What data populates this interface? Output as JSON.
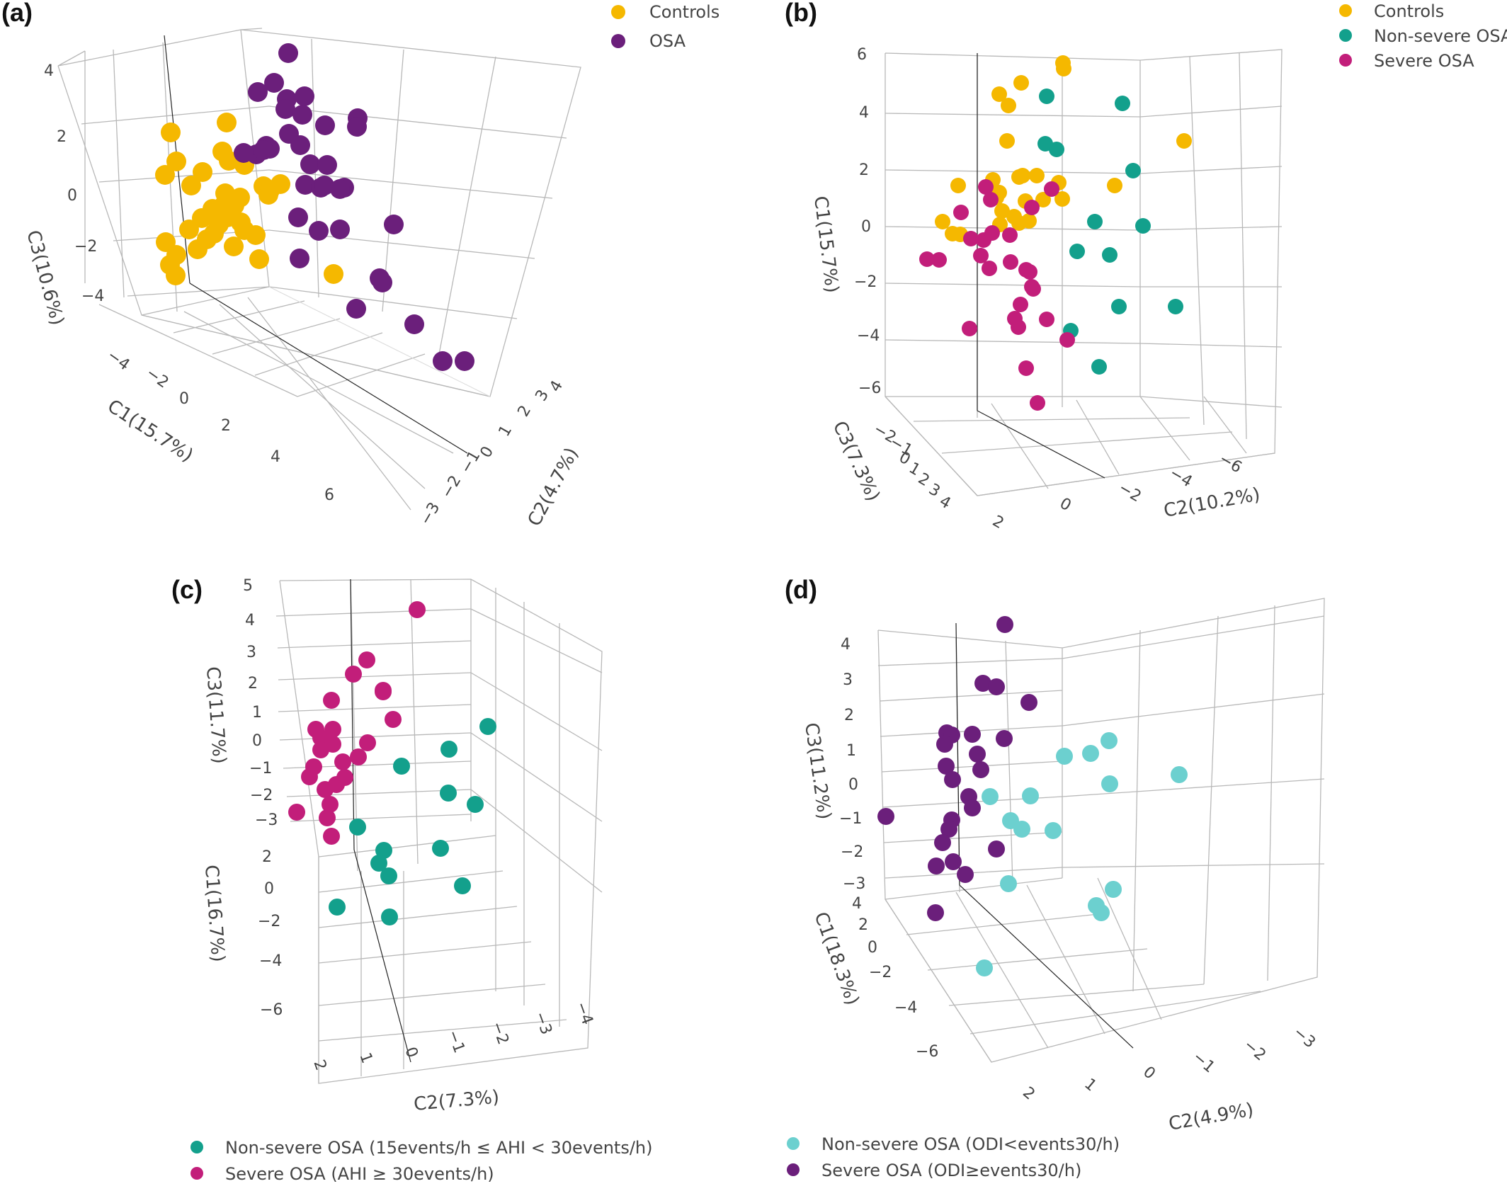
{
  "figure": {
    "panels": [
      {
        "letter": "(a)"
      },
      {
        "letter": "(b)"
      },
      {
        "letter": "(c)"
      },
      {
        "letter": "(d)"
      }
    ]
  },
  "chart_data": [
    {
      "type": "scatter",
      "panel": "(a)",
      "axes": {
        "C1": "C1(15.7%)",
        "C2": "C2(4.7%)",
        "C3": "C3(10.6%)"
      },
      "ticks": {
        "C1": [
          "−4",
          "−2",
          "0",
          "2",
          "4",
          "6"
        ],
        "C2": [
          "−3",
          "−2",
          "−1",
          "0",
          "1",
          "2",
          "3",
          "4"
        ],
        "C3": [
          "4",
          "2",
          "0",
          "−2",
          "−4"
        ]
      },
      "legend_position": "top-center",
      "grid": true,
      "series": [
        {
          "name": "Controls",
          "color": "#F5B800",
          "points": [
            [
              320,
              173
            ],
            [
              241,
              187
            ],
            [
              314,
              214
            ],
            [
              249,
              228
            ],
            [
              233,
              247
            ],
            [
              286,
              243
            ],
            [
              270,
              262
            ],
            [
              323,
              227
            ],
            [
              345,
              233
            ],
            [
              372,
              263
            ],
            [
              381,
              269
            ],
            [
              339,
              279
            ],
            [
              316,
              290
            ],
            [
              300,
              295
            ],
            [
              309,
              301
            ],
            [
              321,
              307
            ],
            [
              331,
              290
            ],
            [
              309,
              317
            ],
            [
              345,
              325
            ],
            [
              302,
              330
            ],
            [
              292,
              338
            ],
            [
              267,
              324
            ],
            [
              330,
              348
            ],
            [
              361,
              332
            ],
            [
              379,
              275
            ],
            [
              234,
              342
            ],
            [
              249,
              360
            ],
            [
              279,
              352
            ],
            [
              240,
              374
            ],
            [
              248,
              389
            ],
            [
              366,
              366
            ],
            [
              471,
              387
            ],
            [
              285,
              308
            ],
            [
              396,
              260
            ],
            [
              318,
              273
            ],
            [
              340,
              314
            ]
          ]
        },
        {
          "name": "OSA",
          "color": "#6B1F7B",
          "points": [
            [
              407,
              75
            ],
            [
              387,
              117
            ],
            [
              364,
              130
            ],
            [
              405,
              140
            ],
            [
              430,
              136
            ],
            [
              403,
              154
            ],
            [
              427,
              162
            ],
            [
              459,
              177
            ],
            [
              505,
              167
            ],
            [
              504,
              179
            ],
            [
              376,
              206
            ],
            [
              362,
              218
            ],
            [
              408,
              189
            ],
            [
              424,
              205
            ],
            [
              381,
              210
            ],
            [
              344,
              216
            ],
            [
              438,
              232
            ],
            [
              462,
              233
            ],
            [
              431,
              261
            ],
            [
              453,
              265
            ],
            [
              486,
              265
            ],
            [
              480,
              267
            ],
            [
              421,
              307
            ],
            [
              450,
              326
            ],
            [
              480,
              324
            ],
            [
              556,
              317
            ],
            [
              423,
              365
            ],
            [
              536,
              393
            ],
            [
              540,
              399
            ],
            [
              503,
              436
            ],
            [
              585,
              458
            ],
            [
              625,
              510
            ],
            [
              656,
              510
            ],
            [
              372,
              212
            ],
            [
              458,
              262
            ]
          ]
        }
      ]
    },
    {
      "type": "scatter",
      "panel": "(b)",
      "axes": {
        "C1": "C1(15.7%)",
        "C2": "C2(10.2%)",
        "C3": "C3(7.3%)"
      },
      "ticks": {
        "C1": [
          "6",
          "4",
          "2",
          "0",
          "−2",
          "−4",
          "−6"
        ],
        "C2": [
          "2",
          "0",
          "−2",
          "−4",
          "−6"
        ],
        "C3": [
          "−2",
          "−1",
          "0",
          "1",
          "2",
          "3",
          "4"
        ]
      },
      "legend_position": "top-right",
      "grid": true,
      "series": [
        {
          "name": "Controls",
          "color": "#F5B800",
          "points": [
            [
              1501,
              89
            ],
            [
              1502,
              97
            ],
            [
              1442,
              117
            ],
            [
              1411,
              133
            ],
            [
              1424,
              149
            ],
            [
              1672,
              199
            ],
            [
              1422,
              199
            ],
            [
              1353,
              262
            ],
            [
              1402,
              254
            ],
            [
              1439,
              250
            ],
            [
              1444,
              248
            ],
            [
              1464,
              248
            ],
            [
              1495,
              258
            ],
            [
              1411,
              272
            ],
            [
              1407,
              279
            ],
            [
              1448,
              284
            ],
            [
              1473,
              282
            ],
            [
              1500,
              281
            ],
            [
              1574,
              262
            ],
            [
              1331,
              313
            ],
            [
              1345,
              330
            ],
            [
              1356,
              331
            ],
            [
              1415,
              298
            ],
            [
              1432,
              306
            ],
            [
              1439,
              315
            ],
            [
              1412,
              317
            ],
            [
              1453,
              312
            ]
          ]
        },
        {
          "name": "Non-severe OSA",
          "color": "#13A08C",
          "points": [
            [
              1478,
              136
            ],
            [
              1585,
              146
            ],
            [
              1476,
              203
            ],
            [
              1492,
              211
            ],
            [
              1600,
              241
            ],
            [
              1546,
              313
            ],
            [
              1614,
              319
            ],
            [
              1521,
              355
            ],
            [
              1567,
              360
            ],
            [
              1580,
              433
            ],
            [
              1660,
              433
            ],
            [
              1512,
              467
            ],
            [
              1552,
              518
            ]
          ]
        },
        {
          "name": "Severe OSA",
          "color": "#C21E7A",
          "points": [
            [
              1399,
              282
            ],
            [
              1357,
              300
            ],
            [
              1392,
              264
            ],
            [
              1485,
              267
            ],
            [
              1457,
              293
            ],
            [
              1326,
              367
            ],
            [
              1309,
              366
            ],
            [
              1371,
              337
            ],
            [
              1389,
              339
            ],
            [
              1401,
              329
            ],
            [
              1426,
              332
            ],
            [
              1385,
              361
            ],
            [
              1397,
              379
            ],
            [
              1427,
              370
            ],
            [
              1449,
              381
            ],
            [
              1454,
              384
            ],
            [
              1457,
              405
            ],
            [
              1459,
              408
            ],
            [
              1441,
              430
            ],
            [
              1433,
              450
            ],
            [
              1438,
              462
            ],
            [
              1478,
              451
            ],
            [
              1507,
              480
            ],
            [
              1449,
              520
            ],
            [
              1465,
              569
            ],
            [
              1369,
              464
            ]
          ]
        }
      ]
    },
    {
      "type": "scatter",
      "panel": "(c)",
      "axes": {
        "C1": "C1(16.7%)",
        "C2": "C2(7.3%)",
        "C3": "C3(11.7%)"
      },
      "ticks": {
        "C1": [
          "2",
          "0",
          "−2",
          "−4",
          "−6"
        ],
        "C2": [
          "2",
          "1",
          "0",
          "−1",
          "−2",
          "−3",
          "−4"
        ],
        "C3": [
          "5",
          "4",
          "3",
          "2",
          "1",
          "0",
          "−1",
          "−2",
          "−3"
        ]
      },
      "grid": true,
      "series": [
        {
          "name": "Non-severe OSA (15events/h ≤ AHI < 30events/h)",
          "color": "#13A08C",
          "points": [
            [
              689,
              1026
            ],
            [
              634,
              1058
            ],
            [
              567,
              1082
            ],
            [
              633,
              1120
            ],
            [
              671,
              1136
            ],
            [
              505,
              1168
            ],
            [
              542,
              1201
            ],
            [
              622,
              1198
            ],
            [
              535,
              1219
            ],
            [
              549,
              1237
            ],
            [
              653,
              1251
            ],
            [
              476,
              1281
            ],
            [
              550,
              1295
            ]
          ]
        },
        {
          "name": "Severe OSA (AHI ≥ 30events/h)",
          "color": "#C21E7A",
          "points": [
            [
              589,
              861
            ],
            [
              518,
              932
            ],
            [
              499,
              952
            ],
            [
              541,
              975
            ],
            [
              468,
              989
            ],
            [
              470,
              1030
            ],
            [
              446,
              1030
            ],
            [
              453,
              1042
            ],
            [
              470,
              1051
            ],
            [
              453,
              1059
            ],
            [
              555,
              1016
            ],
            [
              541,
              977
            ],
            [
              519,
              1049
            ],
            [
              506,
              1069
            ],
            [
              484,
              1076
            ],
            [
              443,
              1083
            ],
            [
              437,
              1097
            ],
            [
              459,
              1115
            ],
            [
              466,
              1136
            ],
            [
              419,
              1147
            ],
            [
              462,
              1155
            ],
            [
              468,
              1181
            ],
            [
              487,
              1098
            ],
            [
              475,
              1108
            ]
          ]
        }
      ]
    },
    {
      "type": "scatter",
      "panel": "(d)",
      "axes": {
        "C1": "C1(18.3%)",
        "C2": "C2(4.9%)",
        "C3": "C3(11.2%)"
      },
      "ticks": {
        "C1": [
          "4",
          "2",
          "0",
          "−2",
          "−4",
          "−6"
        ],
        "C2": [
          "2",
          "1",
          "0",
          "−1",
          "−2",
          "−3"
        ],
        "C3": [
          "4",
          "3",
          "2",
          "1",
          "0",
          "−1",
          "−2",
          "−3"
        ]
      },
      "grid": true,
      "series": [
        {
          "name": "Non-severe OSA (ODI<events30/h)",
          "color": "#6CD0CF",
          "points": [
            [
              1566,
              1046
            ],
            [
              1540,
              1064
            ],
            [
              1503,
              1068
            ],
            [
              1665,
              1094
            ],
            [
              1567,
              1107
            ],
            [
              1455,
              1124
            ],
            [
              1398,
              1125
            ],
            [
              1427,
              1159
            ],
            [
              1443,
              1171
            ],
            [
              1487,
              1173
            ],
            [
              1424,
              1248
            ],
            [
              1572,
              1256
            ],
            [
              1548,
              1279
            ],
            [
              1555,
              1289
            ],
            [
              1390,
              1367
            ]
          ]
        },
        {
          "name": "Severe OSA (ODI≥events30/h)",
          "color": "#6B1F7B",
          "points": [
            [
              1419,
              882
            ],
            [
              1388,
              965
            ],
            [
              1407,
              970
            ],
            [
              1453,
              992
            ],
            [
              1337,
              1035
            ],
            [
              1344,
              1038
            ],
            [
              1373,
              1037
            ],
            [
              1334,
              1051
            ],
            [
              1380,
              1065
            ],
            [
              1418,
              1043
            ],
            [
              1336,
              1082
            ],
            [
              1345,
              1101
            ],
            [
              1385,
              1087
            ],
            [
              1368,
              1125
            ],
            [
              1373,
              1141
            ],
            [
              1251,
              1153
            ],
            [
              1344,
              1158
            ],
            [
              1340,
              1171
            ],
            [
              1407,
              1199
            ],
            [
              1331,
              1190
            ],
            [
              1346,
              1217
            ],
            [
              1322,
              1223
            ],
            [
              1363,
              1235
            ],
            [
              1321,
              1289
            ]
          ]
        }
      ]
    }
  ],
  "legends": {
    "a": [
      "Controls",
      "OSA"
    ],
    "b": [
      "Controls",
      "Non-severe OSA",
      "Severe OSA"
    ],
    "c": [
      "Non-severe OSA (15events/h ≤ AHI < 30events/h)",
      "Severe OSA (AHI ≥ 30events/h)"
    ],
    "d": [
      "Non-severe OSA (ODI<events30/h)",
      "Severe OSA (ODI≥events30/h)"
    ]
  }
}
